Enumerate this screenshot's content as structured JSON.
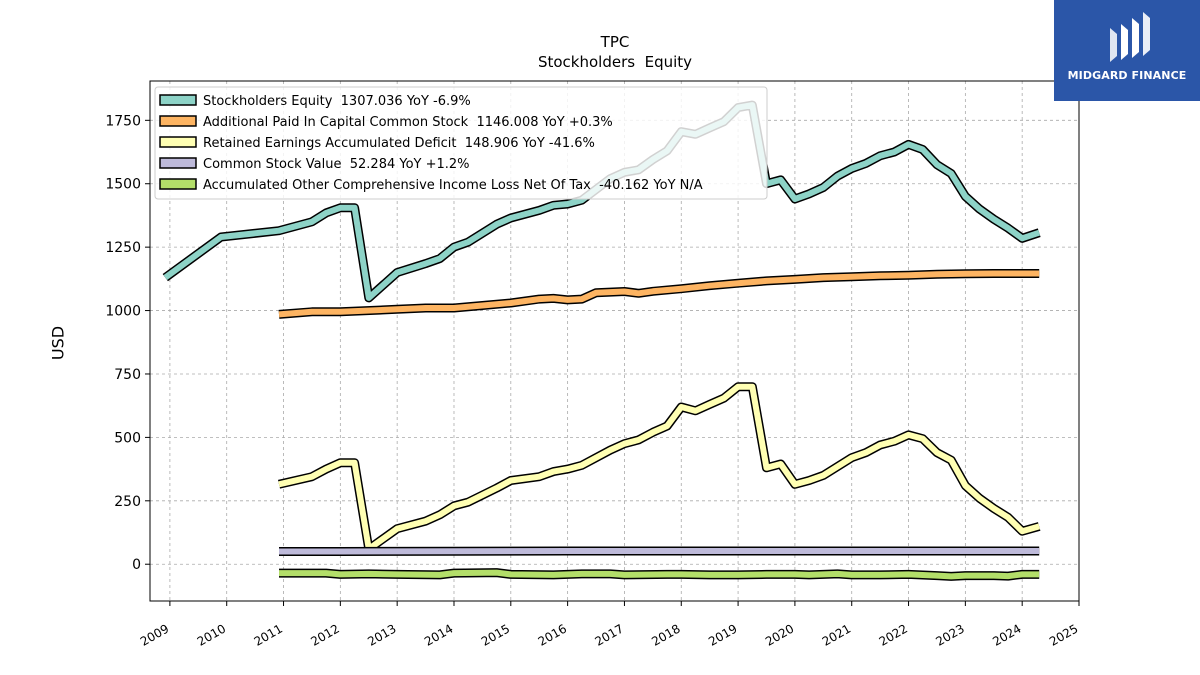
{
  "chart_data": {
    "type": "line",
    "title": "TPC",
    "subtitle": "Stockholders  Equity",
    "ylabel": "USD",
    "xlabel": "",
    "xlim": [
      2008.65,
      2025.0
    ],
    "ylim": [
      -145,
      1905
    ],
    "x_ticks": [
      "2009",
      "2010",
      "2011",
      "2012",
      "2013",
      "2014",
      "2015",
      "2016",
      "2017",
      "2018",
      "2019",
      "2020",
      "2021",
      "2022",
      "2023",
      "2024",
      "2025"
    ],
    "y_ticks": [
      0,
      250,
      500,
      750,
      1000,
      1250,
      1500,
      1750
    ],
    "y_tick_labels": [
      "0",
      "250",
      "500",
      "750",
      "1000",
      "1250",
      "1500",
      "1750"
    ],
    "grid": true,
    "legend_position": "top-left",
    "series": [
      {
        "name": "Stockholders Equity  1307.036 YoY -6.9%",
        "color": "#8dd3c7",
        "points": [
          [
            2008.92,
            1130
          ],
          [
            2009.9,
            1290
          ],
          [
            2010.92,
            1315
          ],
          [
            2011.5,
            1350
          ],
          [
            2011.75,
            1385
          ],
          [
            2012.0,
            1405
          ],
          [
            2012.25,
            1405
          ],
          [
            2012.5,
            1050
          ],
          [
            2013.0,
            1150
          ],
          [
            2013.5,
            1185
          ],
          [
            2013.75,
            1205
          ],
          [
            2014.0,
            1250
          ],
          [
            2014.25,
            1270
          ],
          [
            2014.75,
            1340
          ],
          [
            2015.0,
            1365
          ],
          [
            2015.5,
            1395
          ],
          [
            2015.75,
            1415
          ],
          [
            2016.0,
            1420
          ],
          [
            2016.25,
            1435
          ],
          [
            2016.75,
            1520
          ],
          [
            2017.0,
            1545
          ],
          [
            2017.25,
            1555
          ],
          [
            2017.5,
            1595
          ],
          [
            2017.75,
            1630
          ],
          [
            2018.0,
            1705
          ],
          [
            2018.25,
            1695
          ],
          [
            2018.5,
            1720
          ],
          [
            2018.75,
            1745
          ],
          [
            2019.0,
            1800
          ],
          [
            2019.25,
            1810
          ],
          [
            2019.5,
            1500
          ],
          [
            2019.75,
            1515
          ],
          [
            2020.0,
            1440
          ],
          [
            2020.25,
            1460
          ],
          [
            2020.5,
            1485
          ],
          [
            2020.75,
            1530
          ],
          [
            2021.0,
            1560
          ],
          [
            2021.25,
            1580
          ],
          [
            2021.5,
            1610
          ],
          [
            2021.75,
            1625
          ],
          [
            2022.0,
            1655
          ],
          [
            2022.25,
            1635
          ],
          [
            2022.5,
            1575
          ],
          [
            2022.75,
            1540
          ],
          [
            2023.0,
            1450
          ],
          [
            2023.25,
            1400
          ],
          [
            2023.5,
            1360
          ],
          [
            2023.75,
            1325
          ],
          [
            2024.0,
            1285
          ],
          [
            2024.3,
            1307
          ]
        ]
      },
      {
        "name": "Additional Paid In Capital Common Stock  1146.008 YoY +0.3%",
        "color": "#fdb462",
        "points": [
          [
            2010.92,
            985
          ],
          [
            2011.5,
            995
          ],
          [
            2012.0,
            995
          ],
          [
            2013.0,
            1005
          ],
          [
            2013.5,
            1010
          ],
          [
            2014.0,
            1010
          ],
          [
            2014.5,
            1020
          ],
          [
            2015.0,
            1030
          ],
          [
            2015.5,
            1045
          ],
          [
            2015.75,
            1048
          ],
          [
            2016.0,
            1042
          ],
          [
            2016.25,
            1045
          ],
          [
            2016.5,
            1070
          ],
          [
            2017.0,
            1075
          ],
          [
            2017.25,
            1068
          ],
          [
            2017.5,
            1076
          ],
          [
            2018.0,
            1086
          ],
          [
            2018.5,
            1098
          ],
          [
            2019.0,
            1108
          ],
          [
            2019.5,
            1117
          ],
          [
            2020.0,
            1123
          ],
          [
            2020.5,
            1130
          ],
          [
            2021.0,
            1133
          ],
          [
            2021.5,
            1137
          ],
          [
            2022.0,
            1139
          ],
          [
            2022.5,
            1143
          ],
          [
            2023.0,
            1145
          ],
          [
            2023.5,
            1146
          ],
          [
            2024.0,
            1146
          ],
          [
            2024.3,
            1146
          ]
        ]
      },
      {
        "name": "Retained Earnings Accumulated Deficit  148.906 YoY -41.6%",
        "color": "#ffffb3",
        "points": [
          [
            2010.92,
            315
          ],
          [
            2011.5,
            345
          ],
          [
            2011.75,
            375
          ],
          [
            2012.0,
            400
          ],
          [
            2012.25,
            400
          ],
          [
            2012.5,
            60
          ],
          [
            2013.0,
            140
          ],
          [
            2013.5,
            170
          ],
          [
            2013.75,
            195
          ],
          [
            2014.0,
            230
          ],
          [
            2014.25,
            245
          ],
          [
            2014.75,
            300
          ],
          [
            2015.0,
            330
          ],
          [
            2015.5,
            345
          ],
          [
            2015.75,
            365
          ],
          [
            2016.0,
            375
          ],
          [
            2016.25,
            390
          ],
          [
            2016.75,
            450
          ],
          [
            2017.0,
            475
          ],
          [
            2017.25,
            490
          ],
          [
            2017.5,
            520
          ],
          [
            2017.75,
            545
          ],
          [
            2018.0,
            620
          ],
          [
            2018.25,
            605
          ],
          [
            2018.5,
            630
          ],
          [
            2018.75,
            655
          ],
          [
            2019.0,
            700
          ],
          [
            2019.25,
            700
          ],
          [
            2019.5,
            380
          ],
          [
            2019.75,
            395
          ],
          [
            2020.0,
            315
          ],
          [
            2020.25,
            330
          ],
          [
            2020.5,
            350
          ],
          [
            2020.75,
            385
          ],
          [
            2021.0,
            420
          ],
          [
            2021.25,
            440
          ],
          [
            2021.5,
            470
          ],
          [
            2021.75,
            485
          ],
          [
            2022.0,
            510
          ],
          [
            2022.25,
            495
          ],
          [
            2022.5,
            440
          ],
          [
            2022.75,
            410
          ],
          [
            2023.0,
            310
          ],
          [
            2023.25,
            260
          ],
          [
            2023.5,
            220
          ],
          [
            2023.75,
            185
          ],
          [
            2024.0,
            130
          ],
          [
            2024.3,
            149
          ]
        ]
      },
      {
        "name": "Common Stock Value  52.284 YoY +1.2%",
        "color": "#bebada",
        "points": [
          [
            2010.92,
            50
          ],
          [
            2012.0,
            50
          ],
          [
            2014.0,
            51
          ],
          [
            2016.0,
            52
          ],
          [
            2018.0,
            52
          ],
          [
            2020.0,
            52
          ],
          [
            2022.0,
            52
          ],
          [
            2024.3,
            52
          ]
        ]
      },
      {
        "name": "Accumulated Other Comprehensive Income Loss Net Of Tax  -40.162 YoY N/A",
        "color": "#b3de69",
        "points": [
          [
            2010.92,
            -35
          ],
          [
            2011.75,
            -35
          ],
          [
            2012.0,
            -40
          ],
          [
            2012.5,
            -38
          ],
          [
            2013.0,
            -40
          ],
          [
            2013.75,
            -42
          ],
          [
            2014.0,
            -35
          ],
          [
            2014.75,
            -33
          ],
          [
            2015.0,
            -40
          ],
          [
            2015.75,
            -42
          ],
          [
            2016.25,
            -38
          ],
          [
            2016.75,
            -38
          ],
          [
            2017.0,
            -42
          ],
          [
            2017.75,
            -40
          ],
          [
            2018.0,
            -40
          ],
          [
            2018.5,
            -42
          ],
          [
            2019.0,
            -42
          ],
          [
            2019.5,
            -40
          ],
          [
            2020.0,
            -40
          ],
          [
            2020.25,
            -42
          ],
          [
            2020.75,
            -38
          ],
          [
            2021.0,
            -42
          ],
          [
            2021.5,
            -42
          ],
          [
            2022.0,
            -40
          ],
          [
            2022.5,
            -45
          ],
          [
            2022.75,
            -48
          ],
          [
            2023.0,
            -45
          ],
          [
            2023.5,
            -45
          ],
          [
            2023.75,
            -47
          ],
          [
            2024.0,
            -40
          ],
          [
            2024.3,
            -40
          ]
        ]
      }
    ]
  },
  "brand": {
    "name": "MIDGARD FINANCE",
    "color": "#2b56a8"
  }
}
